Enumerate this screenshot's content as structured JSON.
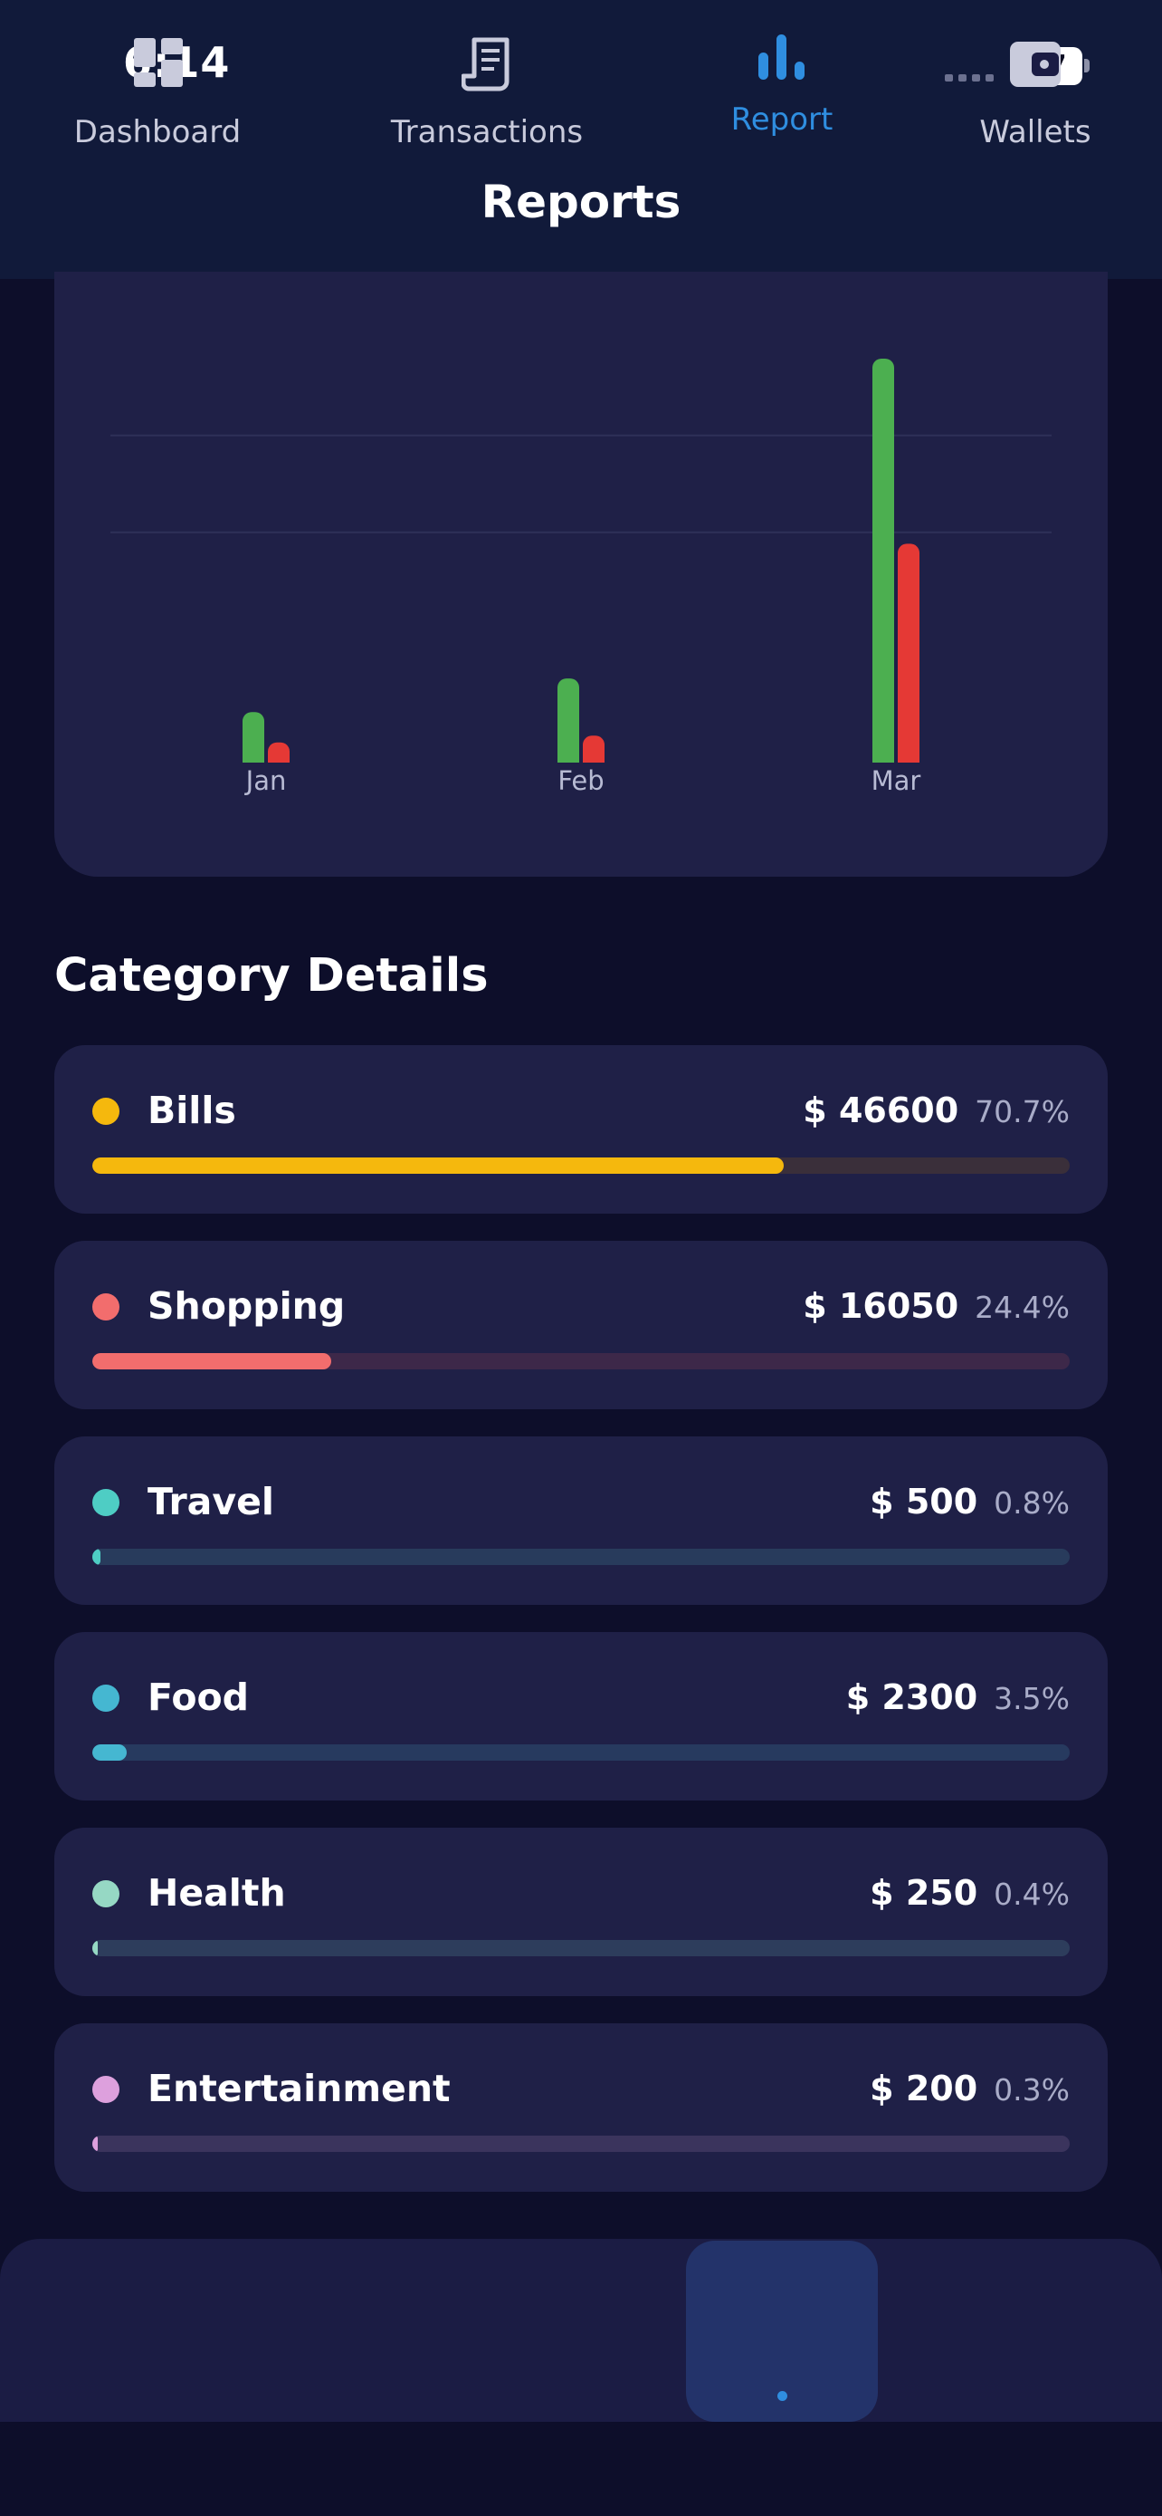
{
  "status_bar": {
    "time": "6:14",
    "battery": "87"
  },
  "header": {
    "title": "Reports"
  },
  "chart_data": {
    "type": "bar",
    "categories": [
      "Jan",
      "Feb",
      "Mar"
    ],
    "series": [
      {
        "values": [
          3000,
          5000,
          24000
        ],
        "color": "#4caf50"
      },
      {
        "values": [
          1200,
          1600,
          13000
        ],
        "color": "#e53935"
      }
    ],
    "ylim": [
      0,
      24000
    ],
    "grid": true
  },
  "categories_section": {
    "title": "Category Details",
    "items": [
      {
        "name": "Bills",
        "amount": "$ 46600",
        "percent": "70.7%",
        "fraction": 0.707,
        "dot_color": "#f5b80d",
        "track_color": "#3a2f3a"
      },
      {
        "name": "Shopping",
        "amount": "$ 16050",
        "percent": "24.4%",
        "fraction": 0.244,
        "dot_color": "#f26d6d",
        "track_color": "#3d2849"
      },
      {
        "name": "Travel",
        "amount": "$ 500",
        "percent": "0.8%",
        "fraction": 0.008,
        "dot_color": "#4ecdc4",
        "track_color": "#283b5c"
      },
      {
        "name": "Food",
        "amount": "$ 2300",
        "percent": "3.5%",
        "fraction": 0.035,
        "dot_color": "#45b7d1",
        "track_color": "#273a5f"
      },
      {
        "name": "Health",
        "amount": "$ 250",
        "percent": "0.4%",
        "fraction": 0.004,
        "dot_color": "#96d8c4",
        "track_color": "#2d3d5c"
      },
      {
        "name": "Entertainment",
        "amount": "$ 200",
        "percent": "0.3%",
        "fraction": 0.003,
        "dot_color": "#dda0dd",
        "track_color": "#3b345d"
      }
    ]
  },
  "bottom_nav": {
    "items": [
      {
        "label": "Dashboard",
        "icon": "dashboard-icon"
      },
      {
        "label": "Transactions",
        "icon": "receipt-icon"
      },
      {
        "label": "Report",
        "icon": "bar-chart-icon",
        "active": true
      },
      {
        "label": "Wallets",
        "icon": "wallet-icon"
      }
    ],
    "active_color": "#2f8ee0"
  }
}
